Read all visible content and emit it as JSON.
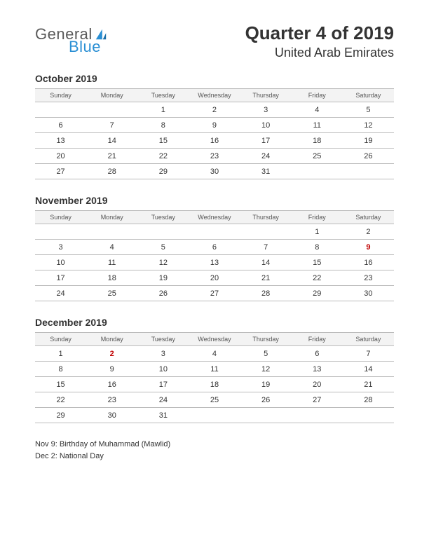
{
  "logo": {
    "word1": "General",
    "word2": "Blue",
    "sail_color": "#2a8fd4",
    "text_gray": "#5a5a5a"
  },
  "header": {
    "title": "Quarter 4 of 2019",
    "subtitle": "United Arab Emirates"
  },
  "weekdays": [
    "Sunday",
    "Monday",
    "Tuesday",
    "Wednesday",
    "Thursday",
    "Friday",
    "Saturday"
  ],
  "months": [
    {
      "name": "October 2019",
      "rows": [
        [
          "",
          "",
          "1",
          "2",
          "3",
          "4",
          "5"
        ],
        [
          "6",
          "7",
          "8",
          "9",
          "10",
          "11",
          "12"
        ],
        [
          "13",
          "14",
          "15",
          "16",
          "17",
          "18",
          "19"
        ],
        [
          "20",
          "21",
          "22",
          "23",
          "24",
          "25",
          "26"
        ],
        [
          "27",
          "28",
          "29",
          "30",
          "31",
          "",
          ""
        ]
      ],
      "holidays": []
    },
    {
      "name": "November 2019",
      "rows": [
        [
          "",
          "",
          "",
          "",
          "",
          "1",
          "2"
        ],
        [
          "3",
          "4",
          "5",
          "6",
          "7",
          "8",
          "9"
        ],
        [
          "10",
          "11",
          "12",
          "13",
          "14",
          "15",
          "16"
        ],
        [
          "17",
          "18",
          "19",
          "20",
          "21",
          "22",
          "23"
        ],
        [
          "24",
          "25",
          "26",
          "27",
          "28",
          "29",
          "30"
        ]
      ],
      "holidays": [
        "9"
      ]
    },
    {
      "name": "December 2019",
      "rows": [
        [
          "1",
          "2",
          "3",
          "4",
          "5",
          "6",
          "7"
        ],
        [
          "8",
          "9",
          "10",
          "11",
          "12",
          "13",
          "14"
        ],
        [
          "15",
          "16",
          "17",
          "18",
          "19",
          "20",
          "21"
        ],
        [
          "22",
          "23",
          "24",
          "25",
          "26",
          "27",
          "28"
        ],
        [
          "29",
          "30",
          "31",
          "",
          "",
          "",
          ""
        ]
      ],
      "holidays": [
        "2"
      ]
    }
  ],
  "holiday_list": [
    "Nov 9: Birthday of Muhammad (Mawlid)",
    "Dec 2: National Day"
  ],
  "style": {
    "page_bg": "#ffffff",
    "text_color": "#333333",
    "header_bg": "#f3f3f3",
    "border_color": "#bbbbbb",
    "holiday_color": "#c00000",
    "title_fontsize": 26,
    "subtitle_fontsize": 18,
    "month_title_fontsize": 14,
    "weekday_fontsize": 9,
    "day_fontsize": 11,
    "holiday_list_fontsize": 11
  }
}
